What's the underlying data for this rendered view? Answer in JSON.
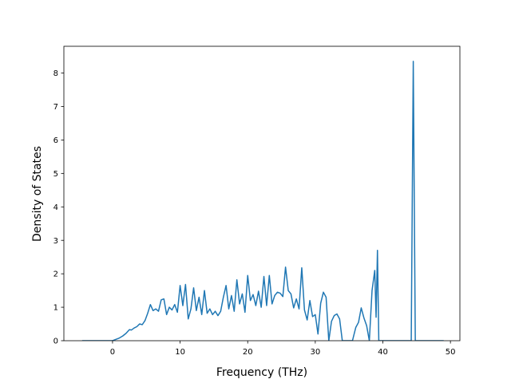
{
  "chart_data": {
    "type": "line",
    "title": "",
    "xlabel": "Frequency (THz)",
    "ylabel": "Density of States",
    "xlim": [
      -7.2,
      51.4
    ],
    "ylim": [
      0,
      8.8
    ],
    "xticks": [
      0,
      10,
      20,
      30,
      40,
      50
    ],
    "yticks": [
      0,
      1,
      2,
      3,
      4,
      5,
      6,
      7,
      8
    ],
    "grid": false,
    "legend": "none",
    "line_color": "#1f77b4",
    "series": [
      {
        "x": [
          -4.5,
          -2.0,
          0.0,
          0.5,
          1.0,
          1.5,
          2.0,
          2.5,
          2.8,
          3.2,
          3.6,
          4.0,
          4.4,
          4.8,
          5.2,
          5.6,
          6.0,
          6.4,
          6.8,
          7.2,
          7.6,
          8.0,
          8.4,
          8.8,
          9.2,
          9.6,
          10.0,
          10.4,
          10.8,
          11.2,
          11.6,
          12.0,
          12.4,
          12.8,
          13.2,
          13.6,
          14.0,
          14.4,
          14.8,
          15.2,
          15.6,
          16.0,
          16.4,
          16.8,
          17.2,
          17.6,
          18.0,
          18.4,
          18.8,
          19.2,
          19.6,
          20.0,
          20.4,
          20.8,
          21.2,
          21.6,
          22.0,
          22.4,
          22.8,
          23.2,
          23.6,
          24.0,
          24.4,
          24.8,
          25.2,
          25.6,
          26.0,
          26.4,
          26.8,
          27.2,
          27.6,
          28.0,
          28.4,
          28.8,
          29.2,
          29.6,
          30.0,
          30.4,
          30.8,
          31.2,
          31.6,
          32.0,
          32.4,
          32.8,
          33.2,
          33.6,
          34.0,
          35.5,
          36.0,
          36.4,
          36.8,
          37.2,
          37.6,
          38.0,
          38.4,
          38.8,
          39.0,
          39.2,
          39.4,
          39.7,
          40.0,
          44.2,
          44.5,
          44.8,
          49.0
        ],
        "y": [
          0.0,
          0.0,
          0.0,
          0.04,
          0.08,
          0.14,
          0.22,
          0.33,
          0.32,
          0.38,
          0.42,
          0.5,
          0.48,
          0.6,
          0.82,
          1.08,
          0.9,
          0.95,
          0.88,
          1.22,
          1.25,
          0.78,
          1.0,
          0.92,
          1.08,
          0.85,
          1.65,
          1.05,
          1.68,
          0.65,
          0.95,
          1.58,
          0.9,
          1.3,
          0.78,
          1.5,
          0.82,
          0.95,
          0.78,
          0.88,
          0.75,
          0.88,
          1.3,
          1.65,
          0.95,
          1.35,
          0.88,
          1.82,
          1.1,
          1.4,
          0.85,
          1.95,
          1.2,
          1.38,
          1.05,
          1.48,
          1.0,
          1.92,
          1.05,
          1.95,
          1.1,
          1.35,
          1.45,
          1.42,
          1.32,
          2.2,
          1.5,
          1.4,
          0.98,
          1.25,
          0.95,
          2.18,
          0.92,
          0.62,
          1.2,
          0.72,
          0.78,
          0.2,
          1.12,
          1.45,
          1.3,
          0.0,
          0.58,
          0.75,
          0.8,
          0.65,
          0.0,
          0.0,
          0.4,
          0.55,
          0.98,
          0.68,
          0.45,
          0.0,
          1.5,
          2.1,
          0.7,
          2.7,
          0.0,
          0.0,
          0.0,
          0.0,
          8.35,
          0.0,
          0.0
        ]
      }
    ]
  }
}
